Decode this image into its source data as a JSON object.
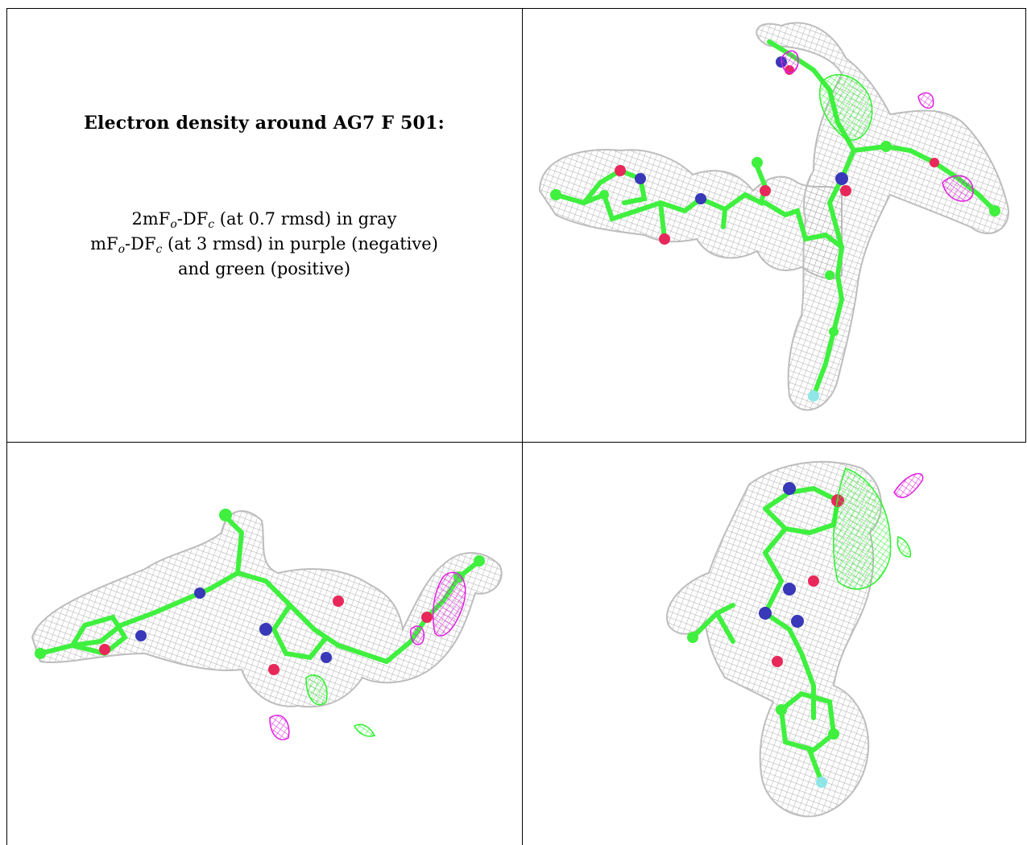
{
  "caption": {
    "title": "Electron density around AG7 F 501:",
    "line1": {
      "pre": "2mF",
      "sub_o": "o",
      "mid": "-DF",
      "sub_c": "c",
      "post": " (at 0.7 rmsd) in gray"
    },
    "line2": {
      "pre": "mF",
      "sub_o": "o",
      "mid": "-DF",
      "sub_c": "c",
      "post": " (at 3 rmsd) in purple (negative)"
    },
    "line3": "and green (positive)"
  },
  "panels": [
    {
      "view": "top-right"
    },
    {
      "view": "bottom-left"
    },
    {
      "view": "bottom-right"
    }
  ],
  "colors": {
    "mesh_gray": "#b8b8b8",
    "carbon_green": "#3ff03f",
    "oxygen_red": "#e8285a",
    "nitrogen_blue": "#3838b8",
    "fluorine_cyan": "#8fe6e6",
    "difference_negative_purple": "#e020e0",
    "difference_positive_green": "#30f030"
  }
}
